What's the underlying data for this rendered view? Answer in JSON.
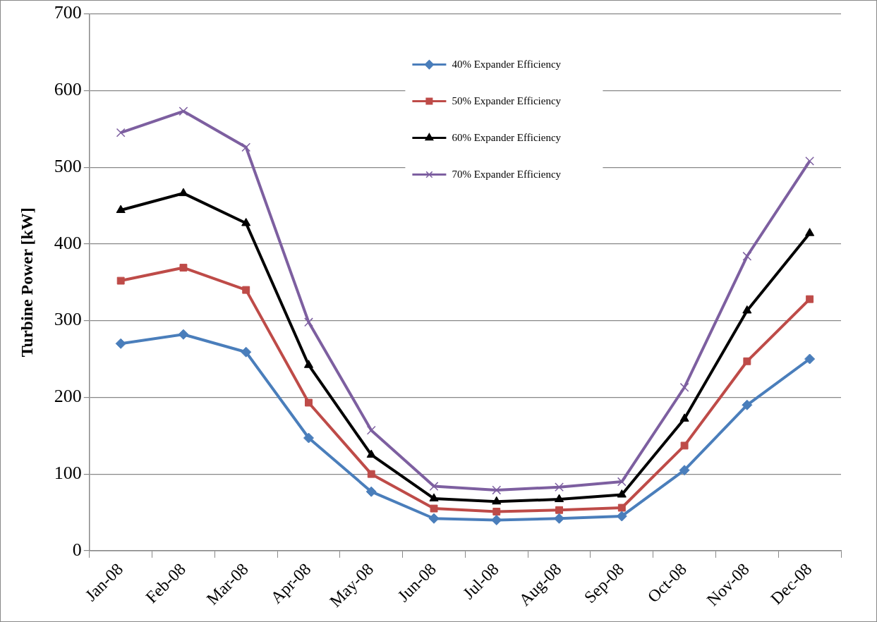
{
  "chart_data": {
    "type": "line",
    "ylabel": "Turbine Power [kW]",
    "categories": [
      "Jan-08",
      "Feb-08",
      "Mar-08",
      "Apr-08",
      "May-08",
      "Jun-08",
      "Jul-08",
      "Aug-08",
      "Sep-08",
      "Oct-08",
      "Nov-08",
      "Dec-08"
    ],
    "series": [
      {
        "name": "40% Expander Efficiency",
        "color": "#4a7ebb",
        "marker": "diamond",
        "values": [
          270,
          282,
          259,
          147,
          77,
          42,
          40,
          42,
          45,
          105,
          190,
          250
        ]
      },
      {
        "name": "50% Expander Efficiency",
        "color": "#be4b48",
        "marker": "square",
        "values": [
          352,
          369,
          340,
          193,
          100,
          55,
          51,
          53,
          56,
          137,
          247,
          328
        ]
      },
      {
        "name": "60% Expander Efficiency",
        "color": "#000000",
        "marker": "triangle",
        "values": [
          444,
          466,
          427,
          242,
          125,
          68,
          64,
          67,
          73,
          172,
          313,
          414
        ]
      },
      {
        "name": "70% Expander Efficiency",
        "color": "#7d5fa0",
        "marker": "cross",
        "values": [
          545,
          573,
          526,
          298,
          157,
          84,
          79,
          83,
          90,
          213,
          384,
          508
        ]
      }
    ],
    "ylim": [
      0,
      700
    ],
    "yticks": [
      0,
      100,
      200,
      300,
      400,
      500,
      600,
      700
    ],
    "grid": "y",
    "legend": "top",
    "line_style": "solid"
  }
}
